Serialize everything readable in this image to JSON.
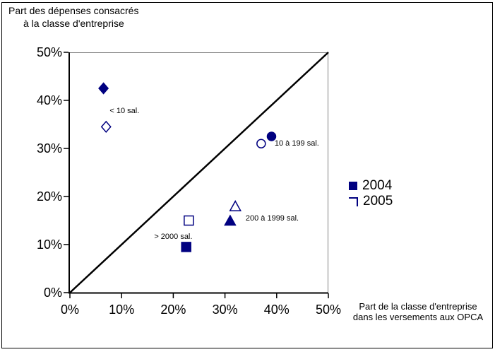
{
  "title": {
    "line1": "Part des dépenses consacrés",
    "line2": "à la classe d'entreprise"
  },
  "x_axis_label": {
    "line1": "Part de la classe d'entreprise",
    "line2": "dans les versements aux OPCA"
  },
  "legend": {
    "items": [
      {
        "label": "2004",
        "marker": "filled-square"
      },
      {
        "label": "2005",
        "marker": "open-square"
      }
    ]
  },
  "colors": {
    "marker": "#000080",
    "axis": "#000000",
    "plot_border": "#808080",
    "text": "#000000"
  },
  "chart_data": {
    "type": "scatter",
    "title": "Part des dépenses consacrés à la classe d'entreprise",
    "xlabel": "Part de la classe d'entreprise dans les versements aux OPCA",
    "ylabel": "Part des dépenses consacrés à la classe d'entreprise",
    "xlim": [
      0,
      50
    ],
    "ylim": [
      0,
      50
    ],
    "grid": false,
    "legend_position": "right",
    "x_ticks": {
      "values": [
        0,
        10,
        20,
        30,
        40,
        50
      ],
      "labels": [
        "0%",
        "10%",
        "20%",
        "30%",
        "40%",
        "50%"
      ]
    },
    "y_ticks": {
      "values": [
        0,
        10,
        20,
        30,
        40,
        50
      ],
      "labels": [
        "0%",
        "10%",
        "20%",
        "30%",
        "40%",
        "50%"
      ]
    },
    "reference_line": {
      "type": "diagonal",
      "from": [
        0,
        0
      ],
      "to": [
        50,
        50
      ]
    },
    "marker_color": "#000080",
    "groups": [
      {
        "label": "< 10 sal.",
        "marker": "diamond",
        "label_anchor": {
          "x": 7.7,
          "y": 37.8
        }
      },
      {
        "label": "10 à 199 sal.",
        "marker": "circle",
        "label_anchor": {
          "x": 39.6,
          "y": 31.0
        }
      },
      {
        "label": "200 à 1999 sal.",
        "marker": "triangle",
        "label_anchor": {
          "x": 34.0,
          "y": 15.4
        }
      },
      {
        "label": "> 2000 sal.",
        "marker": "square",
        "label_anchor": {
          "x": 16.3,
          "y": 11.6
        }
      }
    ],
    "series": [
      {
        "name": "2004",
        "style": "filled",
        "points": [
          {
            "group": "< 10 sal.",
            "x": 6.5,
            "y": 42.5
          },
          {
            "group": "10 à 199 sal.",
            "x": 39,
            "y": 32.5
          },
          {
            "group": "200 à 1999 sal.",
            "x": 31,
            "y": 15
          },
          {
            "group": "> 2000 sal.",
            "x": 22.5,
            "y": 9.5
          }
        ]
      },
      {
        "name": "2005",
        "style": "open",
        "points": [
          {
            "group": "< 10 sal.",
            "x": 7,
            "y": 34.5
          },
          {
            "group": "10 à 199 sal.",
            "x": 37,
            "y": 31
          },
          {
            "group": "200 à 1999 sal.",
            "x": 32,
            "y": 18
          },
          {
            "group": "> 2000 sal.",
            "x": 23,
            "y": 15
          }
        ]
      }
    ]
  }
}
